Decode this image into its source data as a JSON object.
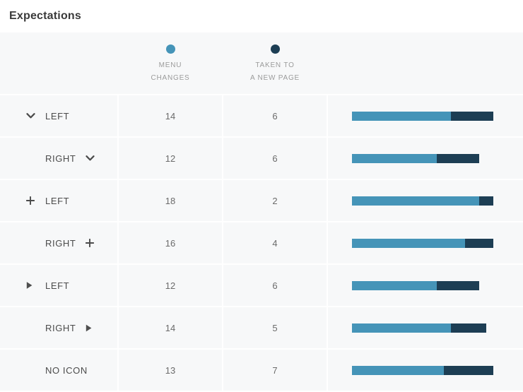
{
  "title": "Expectations",
  "header": {
    "legends": [
      {
        "name": "menu-changes",
        "line1": "MENU",
        "line2": "CHANGES",
        "color": "#4594b8"
      },
      {
        "name": "taken-to-new-page",
        "line1": "TAKEN TO",
        "line2": "A NEW PAGE",
        "color": "#1d3e54"
      }
    ]
  },
  "rows": [
    {
      "icon": "chevron-down-icon",
      "icon_position": "left",
      "label": "LEFT",
      "menu_changes": 14,
      "taken_to_new_page": 6
    },
    {
      "icon": "chevron-down-icon",
      "icon_position": "right",
      "label": "RIGHT",
      "menu_changes": 12,
      "taken_to_new_page": 6
    },
    {
      "icon": "plus-icon",
      "icon_position": "left",
      "label": "LEFT",
      "menu_changes": 18,
      "taken_to_new_page": 2
    },
    {
      "icon": "plus-icon",
      "icon_position": "right",
      "label": "RIGHT",
      "menu_changes": 16,
      "taken_to_new_page": 4
    },
    {
      "icon": "triangle-right-icon",
      "icon_position": "left",
      "label": "LEFT",
      "menu_changes": 12,
      "taken_to_new_page": 6
    },
    {
      "icon": "triangle-right-icon",
      "icon_position": "right",
      "label": "RIGHT",
      "menu_changes": 14,
      "taken_to_new_page": 5
    },
    {
      "icon": null,
      "icon_position": null,
      "label": "NO ICON",
      "menu_changes": 13,
      "taken_to_new_page": 7
    }
  ],
  "colors": {
    "menu_changes": "#4594b8",
    "taken_to_new_page": "#1d3e54",
    "row_background": "#f7f8f9",
    "label_text": "#4b4b4b",
    "value_text": "#6b6b6b",
    "legend_text": "#9b9b9b"
  },
  "chart_data": {
    "type": "bar",
    "orientation": "horizontal",
    "stacked": true,
    "title": "Expectations",
    "categories": [
      "chevron-down icon left, LEFT",
      "RIGHT, chevron-down icon right",
      "plus icon left, LEFT",
      "RIGHT, plus icon right",
      "triangle icon left, LEFT",
      "RIGHT, triangle icon right",
      "NO ICON"
    ],
    "series": [
      {
        "name": "MENU CHANGES",
        "values": [
          14,
          12,
          18,
          16,
          12,
          14,
          13
        ],
        "color": "#4594b8"
      },
      {
        "name": "TAKEN TO A NEW PAGE",
        "values": [
          6,
          6,
          2,
          4,
          6,
          5,
          7
        ],
        "color": "#1d3e54"
      }
    ],
    "xlim": [
      0,
      20
    ],
    "legend_position": "top",
    "grid": false
  }
}
